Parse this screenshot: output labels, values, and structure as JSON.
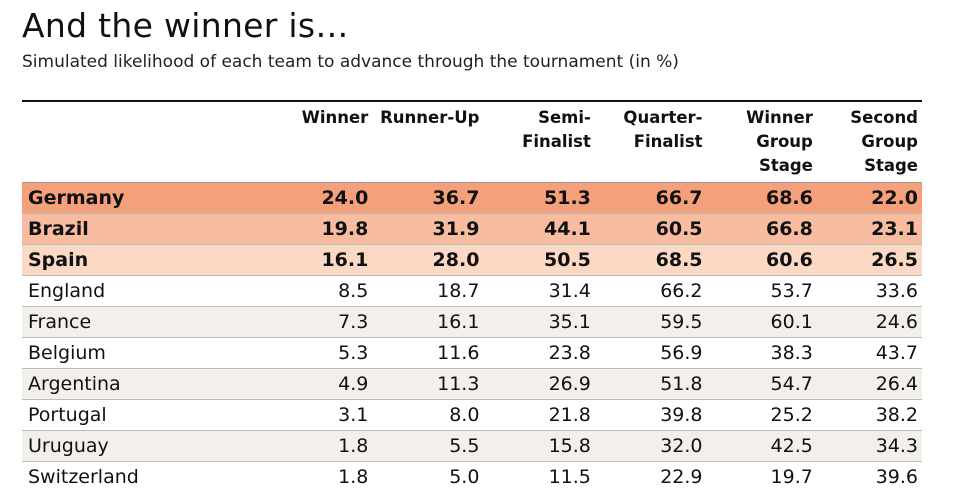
{
  "title": "And the winner is…",
  "subtitle": "Simulated likelihood of each team to advance through the tournament (in %)",
  "chart_data": {
    "type": "table",
    "columns": [
      "Winner",
      "Runner-Up",
      "Semi-\nFinalist",
      "Quarter-\nFinalist",
      "Winner\nGroup\nStage",
      "Second\nGroup\nStage"
    ],
    "rows": [
      {
        "team": "Germany",
        "values": [
          "24.0",
          "36.7",
          "51.3",
          "66.7",
          "68.6",
          "22.0"
        ],
        "highlight": "#f4a07a"
      },
      {
        "team": "Brazil",
        "values": [
          "19.8",
          "31.9",
          "44.1",
          "60.5",
          "66.8",
          "23.1"
        ],
        "highlight": "#f8bda0"
      },
      {
        "team": "Spain",
        "values": [
          "16.1",
          "28.0",
          "50.5",
          "68.5",
          "60.6",
          "26.5"
        ],
        "highlight": "#fbd9c4"
      },
      {
        "team": "England",
        "values": [
          "8.5",
          "18.7",
          "31.4",
          "66.2",
          "53.7",
          "33.6"
        ]
      },
      {
        "team": "France",
        "values": [
          "7.3",
          "16.1",
          "35.1",
          "59.5",
          "60.1",
          "24.6"
        ]
      },
      {
        "team": "Belgium",
        "values": [
          "5.3",
          "11.6",
          "23.8",
          "56.9",
          "38.3",
          "43.7"
        ]
      },
      {
        "team": "Argentina",
        "values": [
          "4.9",
          "11.3",
          "26.9",
          "51.8",
          "54.7",
          "26.4"
        ]
      },
      {
        "team": "Portugal",
        "values": [
          "3.1",
          "8.0",
          "21.8",
          "39.8",
          "25.2",
          "38.2"
        ]
      },
      {
        "team": "Uruguay",
        "values": [
          "1.8",
          "5.5",
          "15.8",
          "32.0",
          "42.5",
          "34.3"
        ]
      },
      {
        "team": "Switzerland",
        "values": [
          "1.8",
          "5.0",
          "11.5",
          "22.9",
          "19.7",
          "39.6"
        ]
      }
    ]
  }
}
